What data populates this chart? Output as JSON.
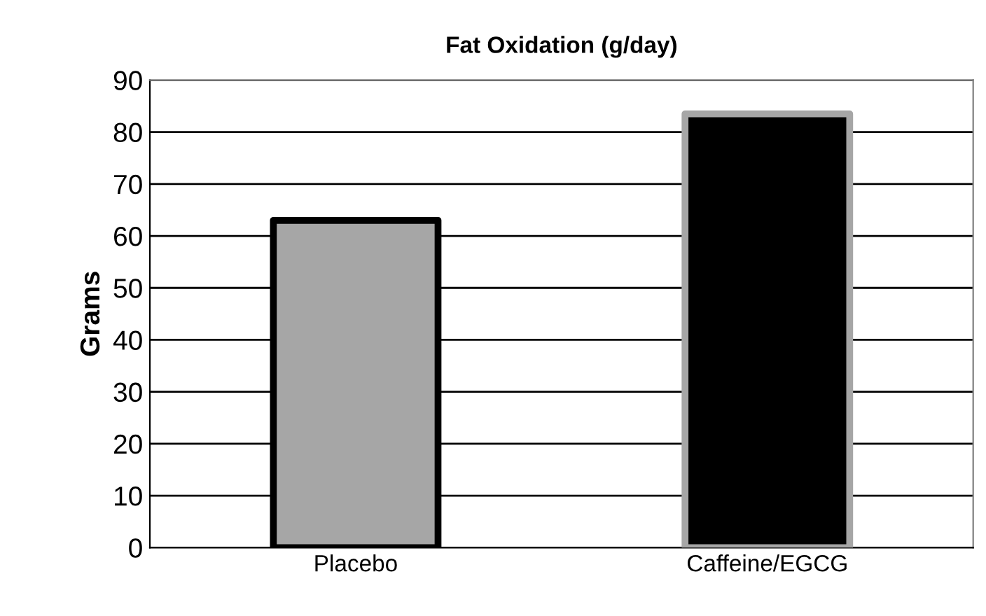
{
  "chart_data": {
    "type": "bar",
    "title": "Fat Oxidation (g/day)",
    "ylabel": "Grams",
    "categories": [
      "Placebo",
      "Caffeine/EGCG"
    ],
    "values": [
      63,
      83.5
    ],
    "colors": [
      "#a6a6a6",
      "#000000"
    ],
    "ylim": [
      0,
      90
    ],
    "yticks": [
      0,
      10,
      20,
      30,
      40,
      50,
      60,
      70,
      80,
      90
    ],
    "grid": "y",
    "legend": false
  }
}
